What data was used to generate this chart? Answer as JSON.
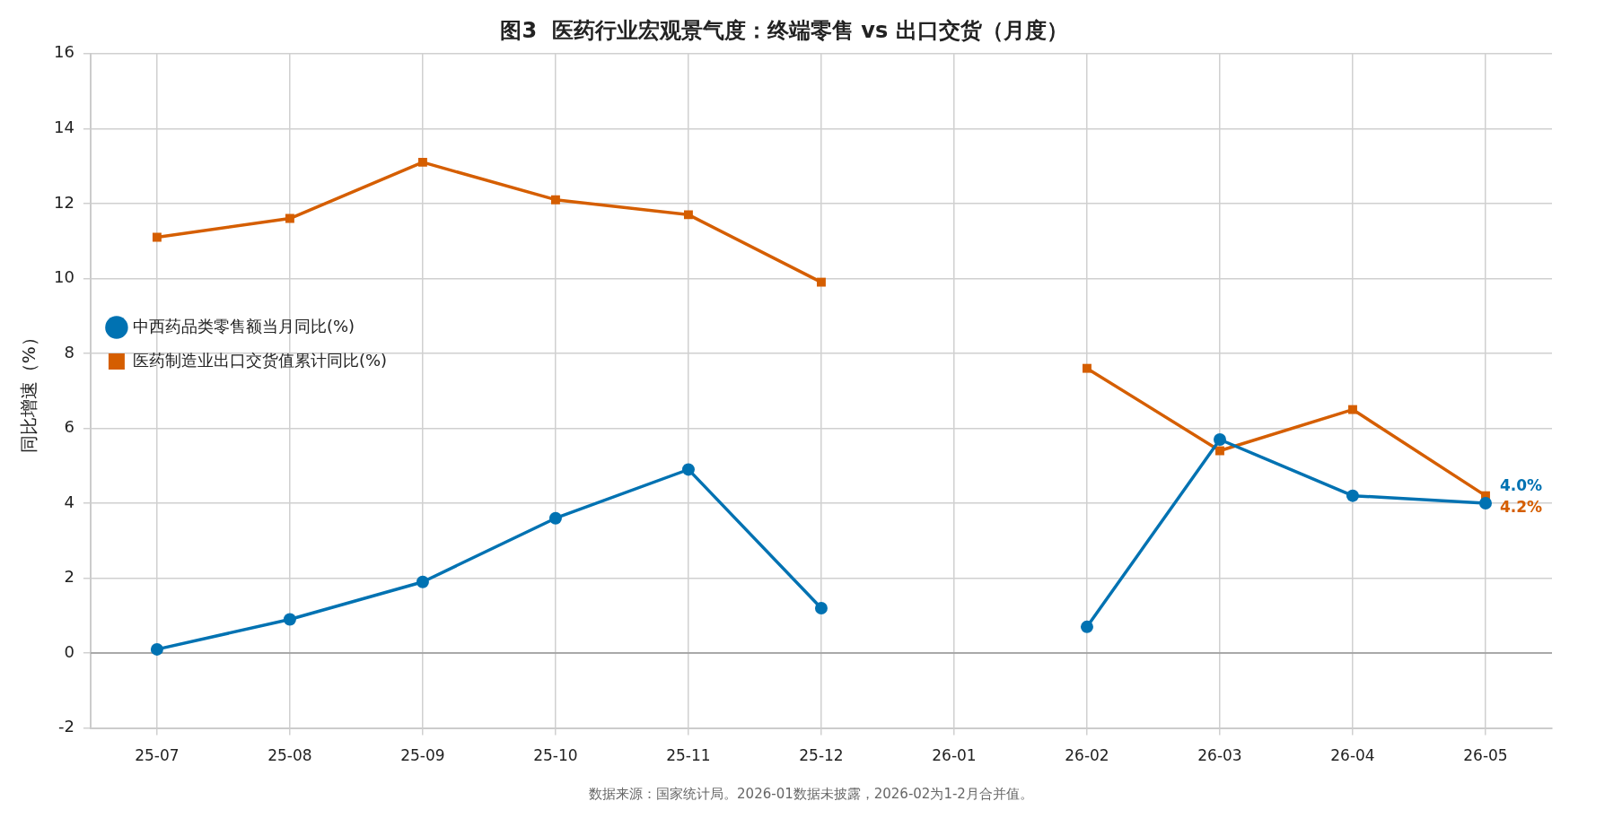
{
  "chart_data": {
    "type": "line",
    "title": "图3  医药行业宏观景气度：终端零售 vs 出口交货（月度）",
    "ylabel": "同比增速（%）",
    "categories": [
      "25-07",
      "25-08",
      "25-09",
      "25-10",
      "25-11",
      "25-12",
      "26-01",
      "26-02",
      "26-03",
      "26-04",
      "26-05"
    ],
    "series": [
      {
        "name": "中西药品类零售额当月同比(%)",
        "color": "#0072b2",
        "marker": "circle",
        "values": [
          0.1,
          0.9,
          1.9,
          3.6,
          4.9,
          1.2,
          null,
          0.7,
          5.7,
          4.2,
          4.0
        ],
        "value_labels": [
          null,
          null,
          null,
          null,
          null,
          null,
          null,
          null,
          null,
          null,
          "4.0%"
        ]
      },
      {
        "name": "医药制造业出口交货值累计同比(%)",
        "color": "#d55e00",
        "marker": "square",
        "values": [
          11.1,
          11.6,
          13.1,
          12.1,
          11.7,
          9.9,
          null,
          7.6,
          5.4,
          6.5,
          4.2
        ],
        "value_labels": [
          null,
          null,
          null,
          null,
          null,
          null,
          null,
          null,
          null,
          null,
          "4.2%"
        ]
      }
    ],
    "ylim": [
      -2,
      16
    ],
    "yticks": [
      -2,
      0,
      2,
      4,
      6,
      8,
      10,
      12,
      14,
      16
    ],
    "grid": true,
    "legend": "top",
    "line_style": "solid",
    "ref_lines": [
      {
        "axis": "y",
        "value": 0,
        "color": "#999999"
      }
    ],
    "annotations": [
      "数据来源：国家统计局。2026-01数据未披露，2026-02为1-2月合并值。"
    ]
  }
}
